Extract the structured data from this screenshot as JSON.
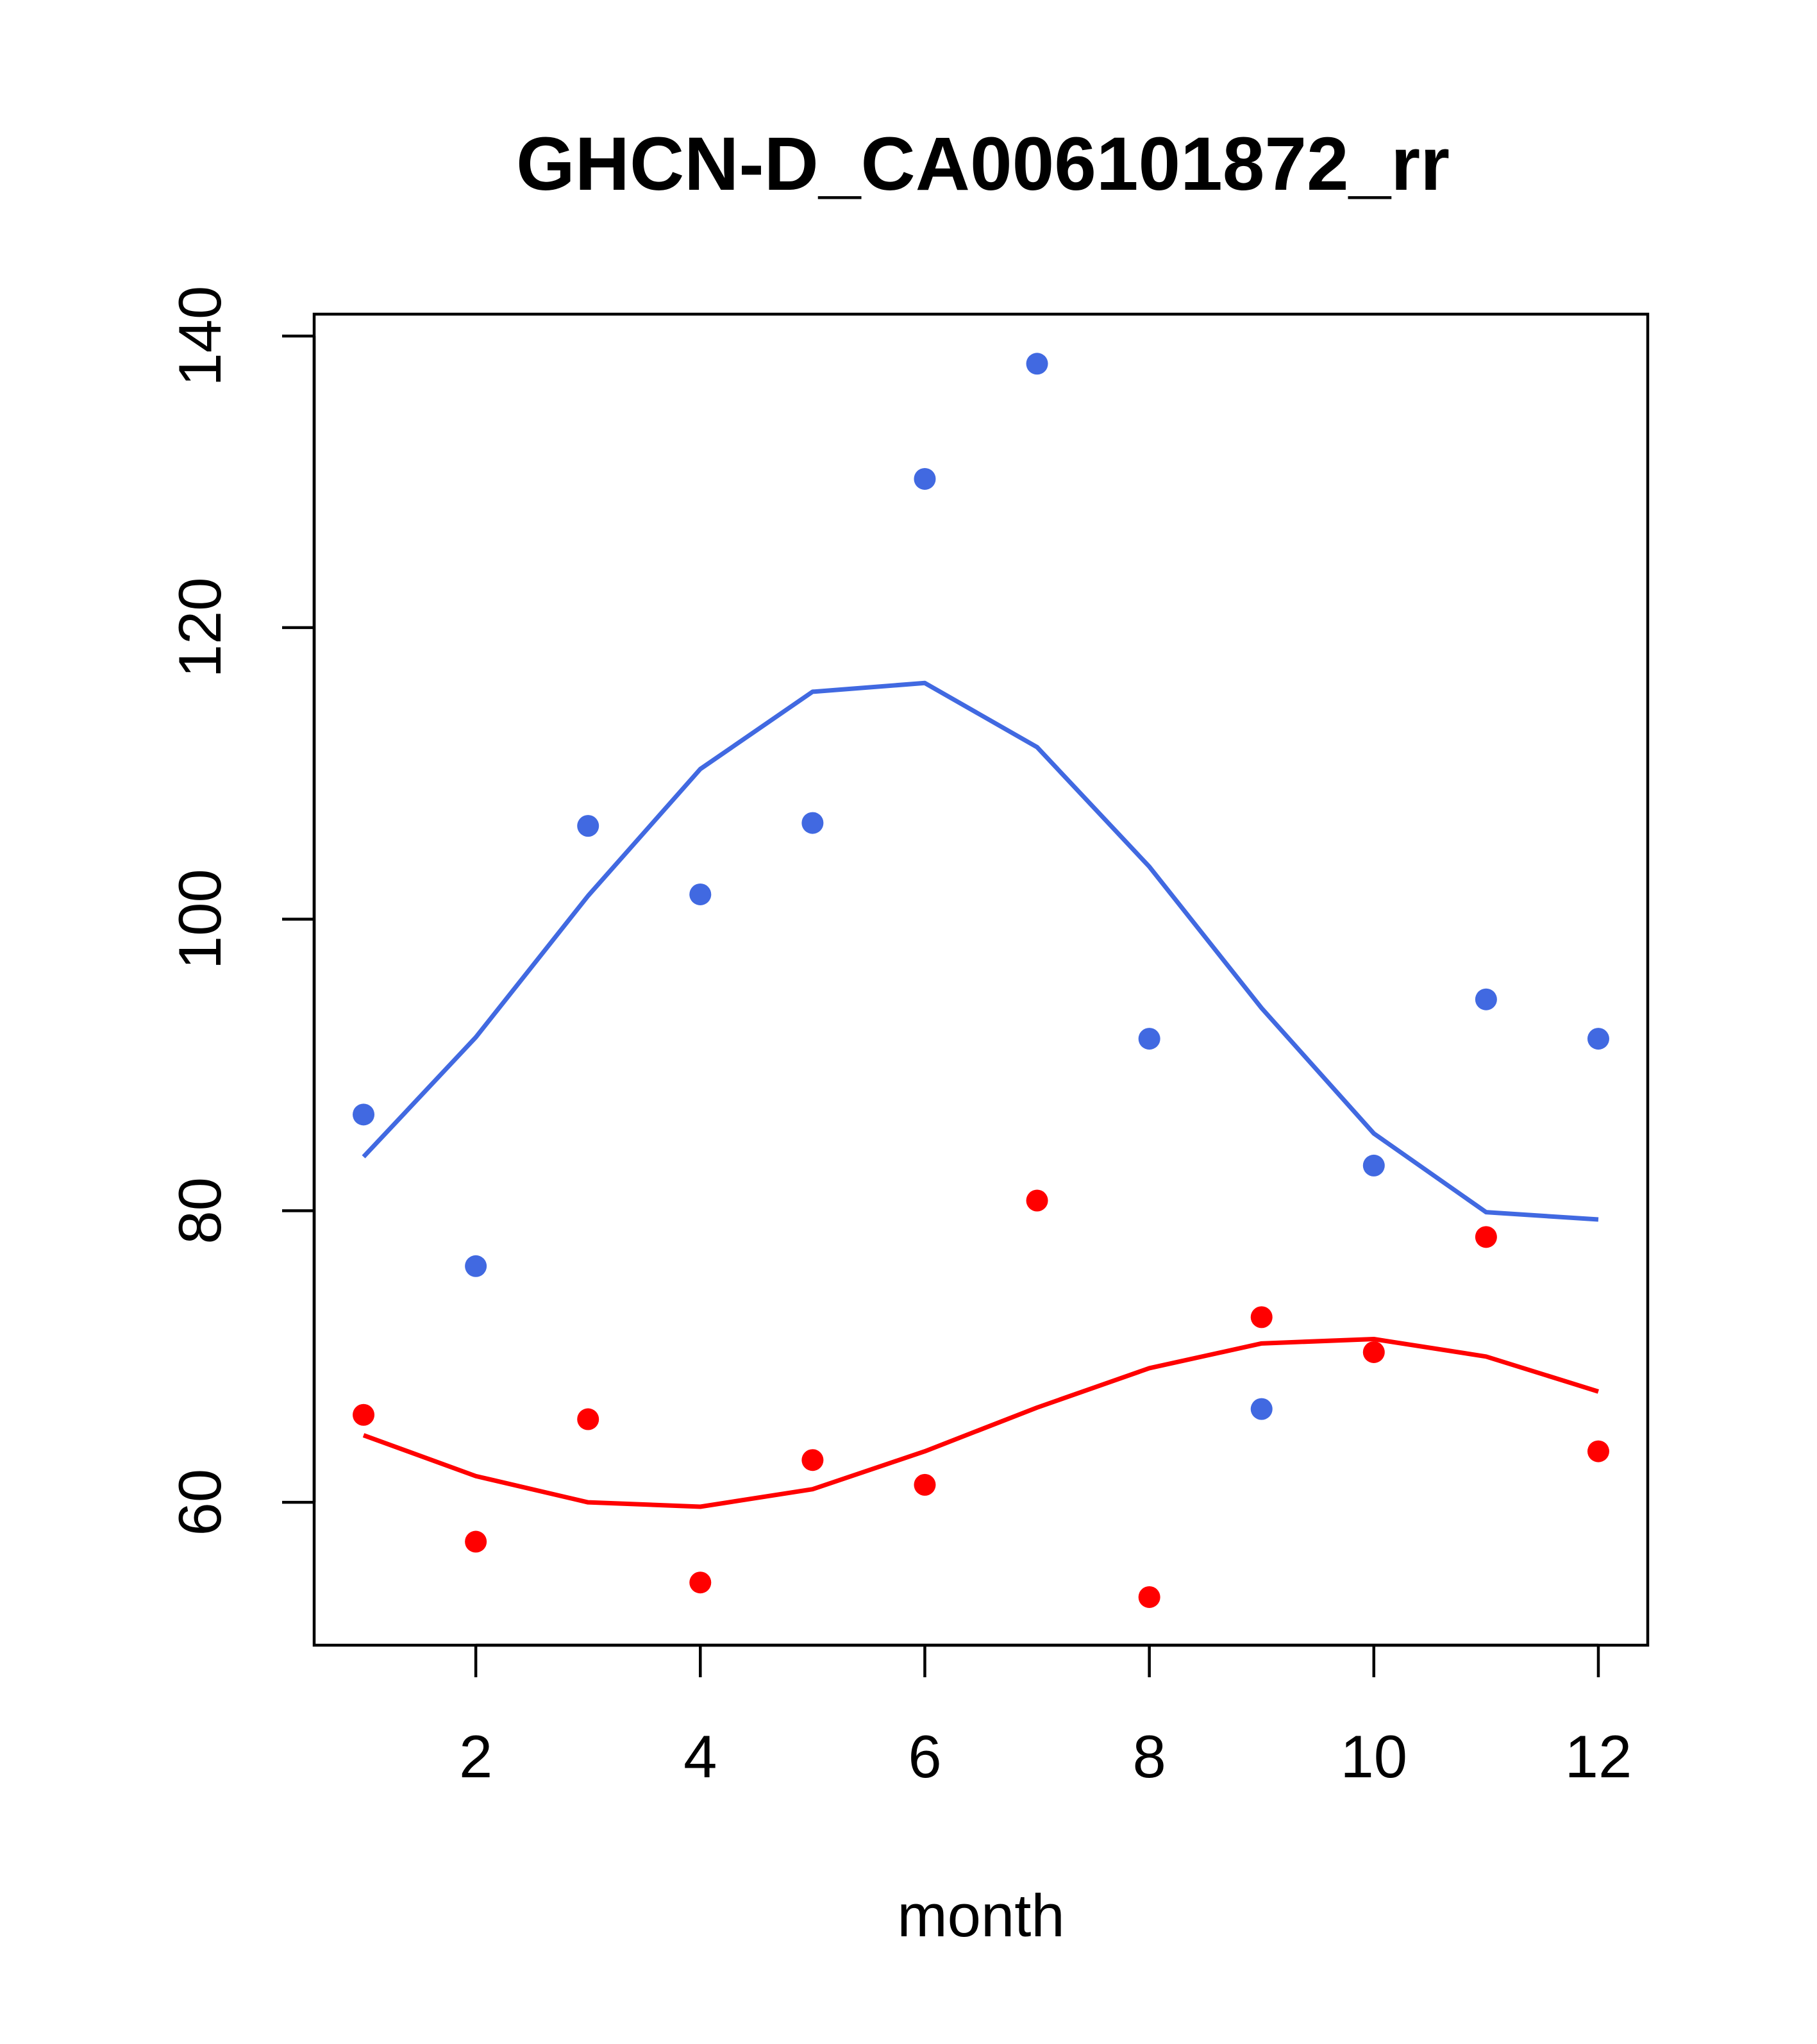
{
  "chart_data": {
    "type": "scatter",
    "title": "GHCN-D_CA006101872_rr",
    "xlabel": "month",
    "ylabel": "",
    "xlim": [
      0.56,
      12.44
    ],
    "ylim": [
      50.2,
      141.5
    ],
    "xticks": [
      2,
      4,
      6,
      8,
      10,
      12
    ],
    "yticks": [
      60,
      80,
      100,
      120,
      140
    ],
    "grid": false,
    "legend": "none",
    "series": [
      {
        "color": "#4169E1",
        "points": {
          "x": [
            1,
            2,
            3,
            4,
            5,
            6,
            7,
            8,
            9,
            10,
            11,
            12
          ],
          "y": [
            86.6,
            76.2,
            106.4,
            101.7,
            106.6,
            130.2,
            138.1,
            91.8,
            66.4,
            83.1,
            94.5,
            91.8
          ]
        },
        "line": {
          "x": [
            1,
            2,
            3,
            4,
            5,
            6,
            7,
            8,
            9,
            10,
            11,
            12
          ],
          "y": [
            83.7,
            91.9,
            101.6,
            110.3,
            115.6,
            116.2,
            111.8,
            103.6,
            93.9,
            85.3,
            79.9,
            79.4
          ]
        }
      },
      {
        "color": "#FF0000",
        "points": {
          "x": [
            1,
            2,
            3,
            4,
            5,
            6,
            7,
            8,
            9,
            10,
            11,
            12
          ],
          "y": [
            66.0,
            57.3,
            65.7,
            54.5,
            62.9,
            61.2,
            80.7,
            53.5,
            72.7,
            70.3,
            78.2,
            63.5
          ]
        },
        "line": {
          "x": [
            1,
            2,
            3,
            4,
            5,
            6,
            7,
            8,
            9,
            10,
            11,
            12
          ],
          "y": [
            64.6,
            61.8,
            60.0,
            59.7,
            60.9,
            63.5,
            66.5,
            69.2,
            70.9,
            71.2,
            70.0,
            67.6
          ]
        }
      }
    ]
  }
}
